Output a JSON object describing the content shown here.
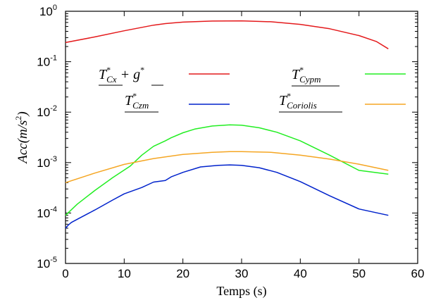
{
  "chart_data": {
    "type": "line",
    "xlabel": "Temps (s)",
    "ylabel": "Acc(m/s",
    "ylabel_sup": "2",
    "ylabel_close": ")",
    "xlim": [
      0,
      60
    ],
    "ylim": [
      1e-05,
      1
    ],
    "yscale": "log",
    "grid": false,
    "legend_position": "upper middle, two columns, line sample to the right of each label",
    "x_ticks": [
      "0",
      "10",
      "20",
      "30",
      "40",
      "50",
      "60"
    ],
    "y_ticks": [
      {
        "base": "10",
        "exp": "-5",
        "value": 1e-05
      },
      {
        "base": "10",
        "exp": "-4",
        "value": 0.0001
      },
      {
        "base": "10",
        "exp": "-3",
        "value": 0.001
      },
      {
        "base": "10",
        "exp": "-2",
        "value": 0.01
      },
      {
        "base": "10",
        "exp": "-1",
        "value": 0.1
      },
      {
        "base": "10",
        "exp": "0",
        "value": 1
      }
    ],
    "series": [
      {
        "name": "T*Cx + g*",
        "label_main": "T",
        "label_sup": "*",
        "label_sub": "Cx",
        "label_tail": " + g",
        "label_tail_sup": "*",
        "color": "#e41a1c",
        "x": [
          0,
          5,
          10,
          15,
          17,
          20,
          25,
          30,
          35,
          40,
          45,
          50,
          53,
          55
        ],
        "y": [
          0.24,
          0.31,
          0.41,
          0.53,
          0.57,
          0.61,
          0.64,
          0.645,
          0.62,
          0.55,
          0.45,
          0.33,
          0.25,
          0.18
        ]
      },
      {
        "name": "T*Cypm",
        "label_main": "T",
        "label_sup": "*",
        "label_sub": "Cypm",
        "color": "#22ee22",
        "x": [
          0,
          2,
          5,
          8,
          11,
          13,
          15,
          17,
          18,
          20,
          22,
          25,
          28,
          30,
          33,
          36,
          40,
          45,
          50,
          55
        ],
        "y": [
          9e-05,
          0.00015,
          0.00028,
          0.0005,
          0.00085,
          0.0014,
          0.0021,
          0.0027,
          0.0031,
          0.0039,
          0.0046,
          0.0053,
          0.0056,
          0.0055,
          0.0049,
          0.004,
          0.0027,
          0.0014,
          0.0007,
          0.00059
        ]
      },
      {
        "name": "T*Czm",
        "label_main": "T",
        "label_sup": "*",
        "label_sub": "Czm",
        "color": "#0022cc",
        "x": [
          0,
          0.5,
          1,
          2,
          5,
          8,
          10,
          13,
          15,
          17,
          18,
          20,
          23,
          26,
          28,
          30,
          33,
          36,
          40,
          45,
          50,
          55
        ],
        "y": [
          5e-05,
          5.8e-05,
          6.5e-05,
          7.5e-05,
          0.000115,
          0.00018,
          0.00024,
          0.00032,
          0.00041,
          0.00044,
          0.00052,
          0.00064,
          0.00082,
          0.00088,
          0.0009,
          0.00088,
          0.00079,
          0.00064,
          0.00042,
          0.00022,
          0.00012,
          9e-05
        ]
      },
      {
        "name": "T*Coriolis",
        "label_main": "T",
        "label_sup": "*",
        "label_sub": "Coriolis",
        "color": "#f5a623",
        "x": [
          0,
          5,
          10,
          15,
          20,
          25,
          28,
          30,
          35,
          40,
          45,
          50,
          55
        ],
        "y": [
          0.0004,
          0.00062,
          0.00092,
          0.0012,
          0.00145,
          0.0016,
          0.00165,
          0.00165,
          0.0016,
          0.0014,
          0.00117,
          0.00093,
          0.0007
        ]
      }
    ]
  }
}
